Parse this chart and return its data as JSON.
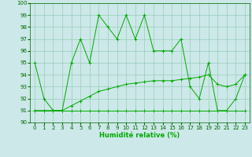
{
  "xlabel": "Humidité relative (%)",
  "xlim": [
    -0.5,
    23.5
  ],
  "ylim": [
    90,
    100
  ],
  "yticks": [
    90,
    91,
    92,
    93,
    94,
    95,
    96,
    97,
    98,
    99,
    100
  ],
  "xticks": [
    0,
    1,
    2,
    3,
    4,
    5,
    6,
    7,
    8,
    9,
    10,
    11,
    12,
    13,
    14,
    15,
    16,
    17,
    18,
    19,
    20,
    21,
    22,
    23
  ],
  "background_color": "#cce8e8",
  "grid_color": "#99ccbb",
  "line_color": "#00aa00",
  "series1": [
    95,
    92,
    91,
    91,
    95,
    97,
    95,
    99,
    98,
    97,
    99,
    97,
    99,
    96,
    96,
    96,
    97,
    93,
    92,
    95,
    91,
    91,
    92,
    94
  ],
  "series2": [
    91,
    91,
    91,
    91,
    91,
    91,
    91,
    91,
    91,
    91,
    91,
    91,
    91,
    91,
    91,
    91,
    91,
    91,
    91,
    91,
    91,
    91,
    91,
    91
  ],
  "series3": [
    91,
    91,
    91,
    91,
    91.4,
    91.8,
    92.2,
    92.6,
    92.8,
    93.0,
    93.2,
    93.3,
    93.4,
    93.5,
    93.5,
    93.5,
    93.6,
    93.7,
    93.8,
    94.0,
    93.2,
    93.0,
    93.2,
    94.0
  ]
}
